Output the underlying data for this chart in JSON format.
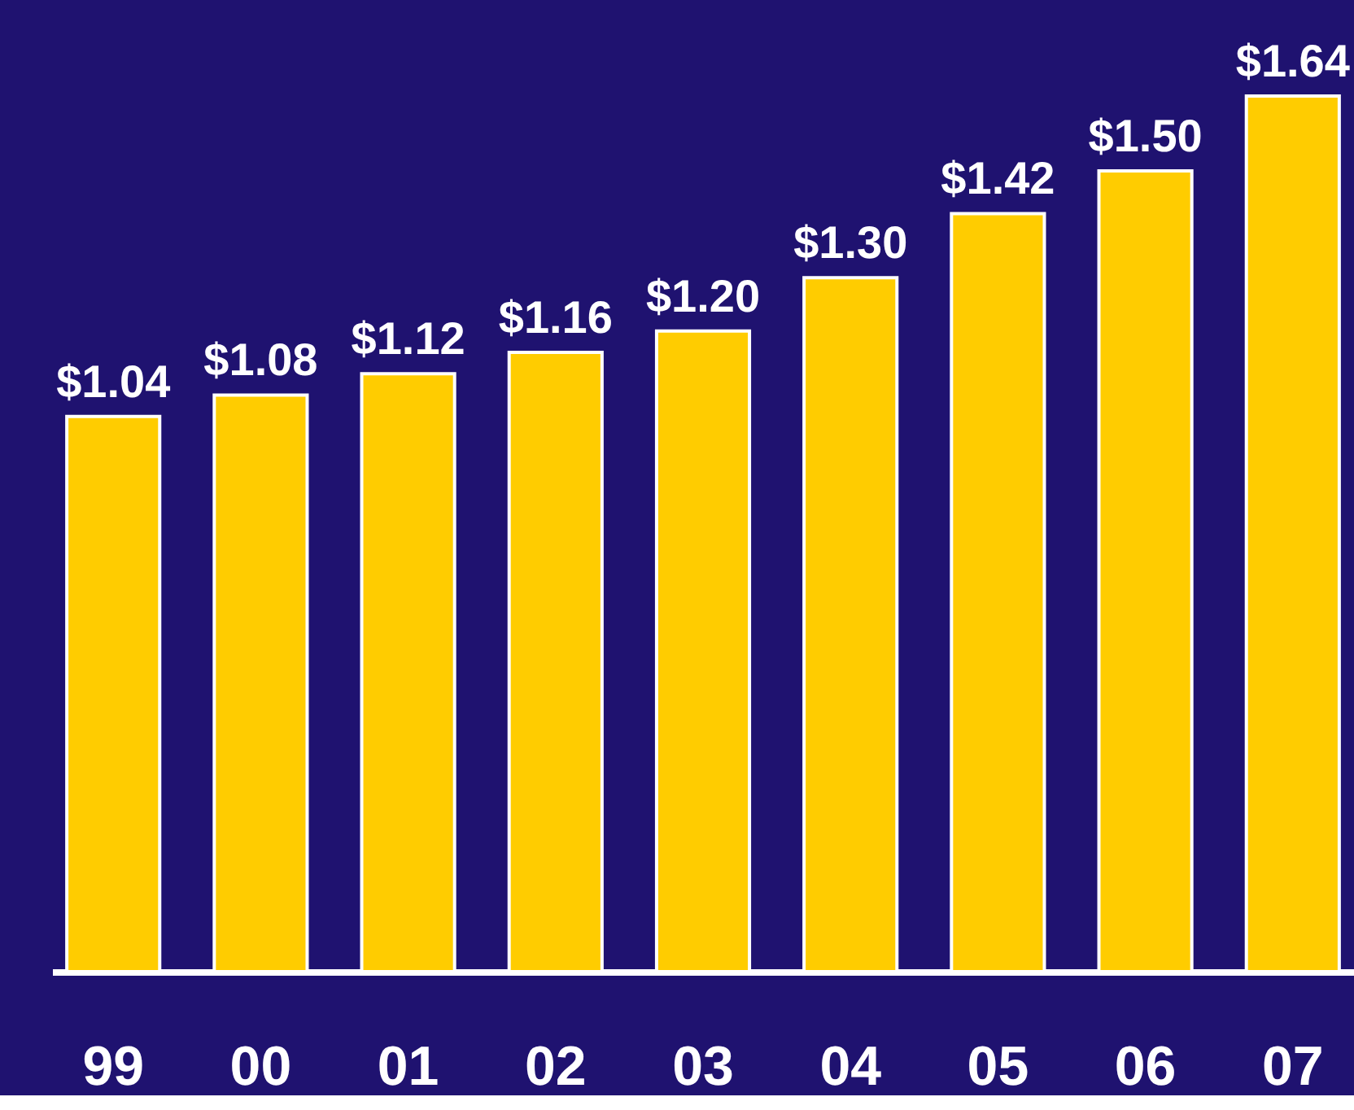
{
  "chart_data": {
    "type": "bar",
    "categories": [
      "99",
      "00",
      "01",
      "02",
      "03",
      "04",
      "05",
      "06",
      "07"
    ],
    "values": [
      1.04,
      1.08,
      1.12,
      1.16,
      1.2,
      1.3,
      1.42,
      1.5,
      1.64
    ],
    "value_labels": [
      "$1.04",
      "$1.08",
      "$1.12",
      "$1.16",
      "$1.20",
      "$1.30",
      "$1.42",
      "$1.50",
      "$1.64"
    ],
    "color": "#ffcc00",
    "ylim": [
      0,
      1.82
    ],
    "grid": false
  }
}
